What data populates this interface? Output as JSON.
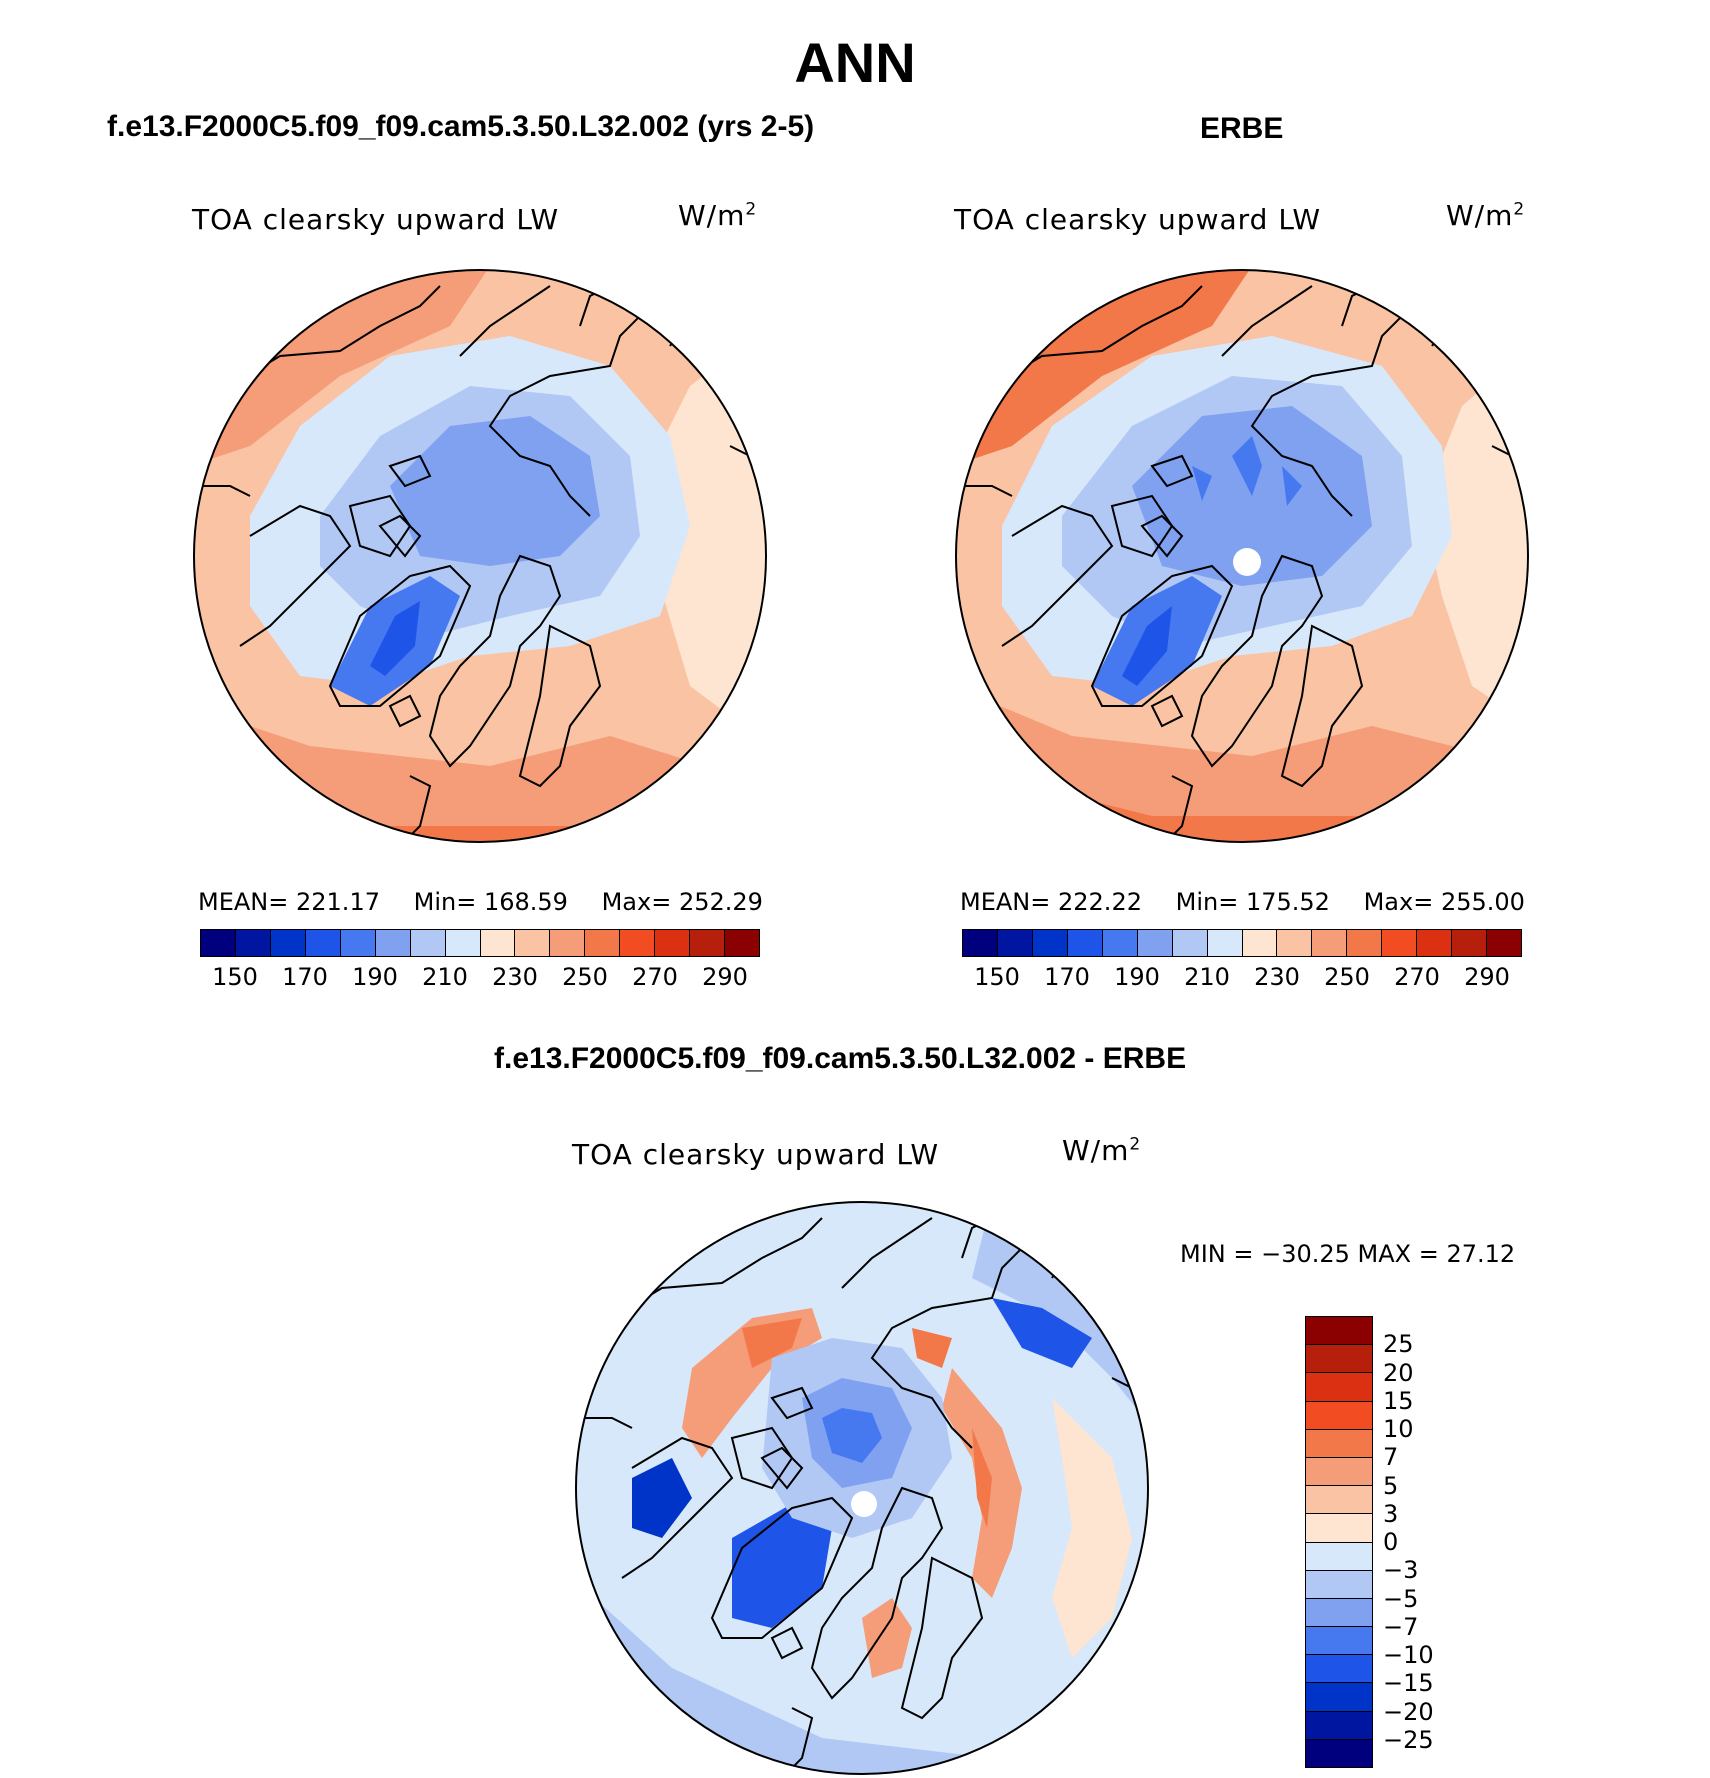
{
  "title": "ANN",
  "panels": [
    {
      "case_title": "f.e13.F2000C5.f09_f09.cam5.3.50.L32.002 (yrs 2-5)",
      "variable_label": "TOA clearsky upward LW",
      "units": "W/m",
      "units_sup": "2",
      "stats": {
        "mean_label": "MEAN=",
        "mean": "221.17",
        "min_label": "Min=",
        "min": "168.59",
        "max_label": "Max=",
        "max": "252.29"
      }
    },
    {
      "case_title": "ERBE",
      "variable_label": "TOA clearsky upward LW",
      "units": "W/m",
      "units_sup": "2",
      "stats": {
        "mean_label": "MEAN=",
        "mean": "222.22",
        "min_label": "Min=",
        "min": "175.52",
        "max_label": "Max=",
        "max": "255.00"
      }
    },
    {
      "case_title": "f.e13.F2000C5.f09_f09.cam5.3.50.L32.002 - ERBE",
      "variable_label": "TOA clearsky upward LW",
      "units": "W/m",
      "units_sup": "2",
      "stats_text": "MIN = −30.25 MAX =  27.12"
    }
  ],
  "abs_colorbar": {
    "colors": [
      "#00007f",
      "#0016a0",
      "#0033c8",
      "#1e55e8",
      "#4678f0",
      "#7fa1f0",
      "#b1c8f5",
      "#d8e8fb",
      "#fde5d1",
      "#f9c3a4",
      "#f59d79",
      "#f27849",
      "#f24d22",
      "#db3112",
      "#b51f0c",
      "#8b0000"
    ],
    "labels": [
      "150",
      "170",
      "190",
      "210",
      "230",
      "250",
      "270",
      "290"
    ]
  },
  "diff_colorbar": {
    "colors": [
      "#8b0000",
      "#b51f0c",
      "#db3112",
      "#f24d22",
      "#f27849",
      "#f59d79",
      "#f9c3a4",
      "#fde5d1",
      "#d8e8fb",
      "#b1c8f5",
      "#7fa1f0",
      "#4678f0",
      "#1e55e8",
      "#0033c8",
      "#0016a0",
      "#00007f"
    ],
    "labels": [
      "25",
      "20",
      "15",
      "10",
      "7",
      "5",
      "3",
      "0",
      "−3",
      "−5",
      "−7",
      "−10",
      "−15",
      "−20",
      "−25"
    ]
  }
}
